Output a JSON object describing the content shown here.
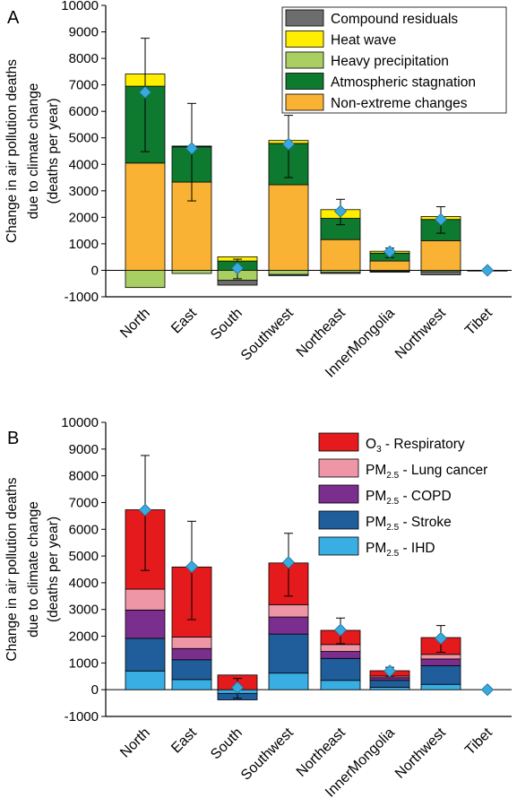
{
  "chart_data": [
    {
      "panel": "A",
      "type": "bar",
      "stacked": true,
      "ylabel_lines": [
        "Change in air pollution deaths",
        "due to climate change",
        "(deaths per year)"
      ],
      "ylim": [
        -1000,
        10000
      ],
      "yticks": [
        "10000",
        "9000",
        "8000",
        "7000",
        "6000",
        "5000",
        "4000",
        "3000",
        "2000",
        "1000",
        "0",
        "-1000"
      ],
      "categories": [
        "North",
        "East",
        "South",
        "Southwest",
        "Northeast",
        "InnerMongolia",
        "Northwest",
        "Tibet"
      ],
      "series": [
        {
          "name": "Non-extreme changes",
          "color": "#F9B233",
          "values": [
            4050,
            3330,
            0,
            3230,
            1160,
            350,
            1120,
            0
          ]
        },
        {
          "name": "Atmospheric stagnation",
          "color": "#0E7A30",
          "values": [
            2900,
            1330,
            350,
            1560,
            800,
            300,
            800,
            0
          ]
        },
        {
          "name": "Heavy precipitation",
          "color": "#A9CF63",
          "values": [
            -650,
            -120,
            -380,
            -160,
            -80,
            -40,
            -50,
            -10
          ]
        },
        {
          "name": "Heat wave",
          "color": "#FFEE00",
          "values": [
            460,
            0,
            160,
            110,
            330,
            70,
            110,
            0
          ]
        },
        {
          "name": "Compound residuals",
          "color": "#6D6D6D",
          "values": [
            0,
            30,
            -180,
            -40,
            -40,
            -30,
            -120,
            -10
          ]
        }
      ],
      "legend_order": [
        "Compound residuals",
        "Heat wave",
        "Heavy precipitation",
        "Atmospheric stagnation",
        "Non-extreme changes"
      ],
      "markers": {
        "color": "#3AA9DE",
        "values": [
          6720,
          4600,
          80,
          4760,
          2230,
          700,
          1920,
          0
        ]
      },
      "error_bars": [
        [
          4480,
          8760
        ],
        [
          2620,
          6300
        ],
        [
          -320,
          420
        ],
        [
          3500,
          5850
        ],
        [
          1720,
          2680
        ],
        [
          480,
          840
        ],
        [
          1400,
          2400
        ],
        [
          -40,
          40
        ]
      ]
    },
    {
      "panel": "B",
      "type": "bar",
      "stacked": true,
      "ylabel_lines": [
        "Change in air pollution deaths",
        "due to climate change",
        "(deaths per year)"
      ],
      "ylim": [
        -1000,
        10000
      ],
      "yticks": [
        "10000",
        "9000",
        "8000",
        "7000",
        "6000",
        "5000",
        "4000",
        "3000",
        "2000",
        "1000",
        "0",
        "-1000"
      ],
      "categories": [
        "North",
        "East",
        "South",
        "Southwest",
        "Northeast",
        "InnerMongolia",
        "Northwest",
        "Tibet"
      ],
      "series": [
        {
          "name": "PM2.5 - IHD",
          "color": "#38AEE3",
          "values": [
            700,
            380,
            -140,
            620,
            350,
            90,
            200,
            0
          ]
        },
        {
          "name": "PM2.5 - Stroke",
          "color": "#1F5E9B",
          "values": [
            1220,
            740,
            -240,
            1460,
            820,
            260,
            700,
            0
          ]
        },
        {
          "name": "PM2.5 - COPD",
          "color": "#7A2E8E",
          "values": [
            1060,
            420,
            0,
            640,
            260,
            100,
            250,
            0
          ]
        },
        {
          "name": "PM2.5 - Lung cancer",
          "color": "#EF96A6",
          "values": [
            780,
            430,
            0,
            460,
            260,
            60,
            170,
            0
          ]
        },
        {
          "name": "O3 - Respiratory",
          "color": "#E41A1C",
          "values": [
            2970,
            2620,
            550,
            1560,
            530,
            200,
            630,
            0
          ]
        }
      ],
      "legend_order": [
        "O3 - Respiratory",
        "PM2.5 - Lung cancer",
        "PM2.5 - COPD",
        "PM2.5 - Stroke",
        "PM2.5 - IHD"
      ],
      "legend_labels": [
        {
          "main": "O",
          "sub": "3",
          "rest": " - Respiratory"
        },
        {
          "main": "PM",
          "sub": "2.5",
          "rest": " - Lung cancer"
        },
        {
          "main": "PM",
          "sub": "2.5",
          "rest": " - COPD"
        },
        {
          "main": "PM",
          "sub": "2.5",
          "rest": " - Stroke"
        },
        {
          "main": "PM",
          "sub": "2.5",
          "rest": " - IHD"
        }
      ],
      "markers": {
        "color": "#3AA9DE",
        "values": [
          6720,
          4600,
          80,
          4760,
          2230,
          700,
          1920,
          0
        ]
      },
      "error_bars": [
        [
          4460,
          8760
        ],
        [
          2620,
          6300
        ],
        [
          -320,
          420
        ],
        [
          3500,
          5850
        ],
        [
          1720,
          2680
        ],
        [
          500,
          840
        ],
        [
          1400,
          2400
        ],
        [
          -40,
          40
        ]
      ]
    }
  ]
}
